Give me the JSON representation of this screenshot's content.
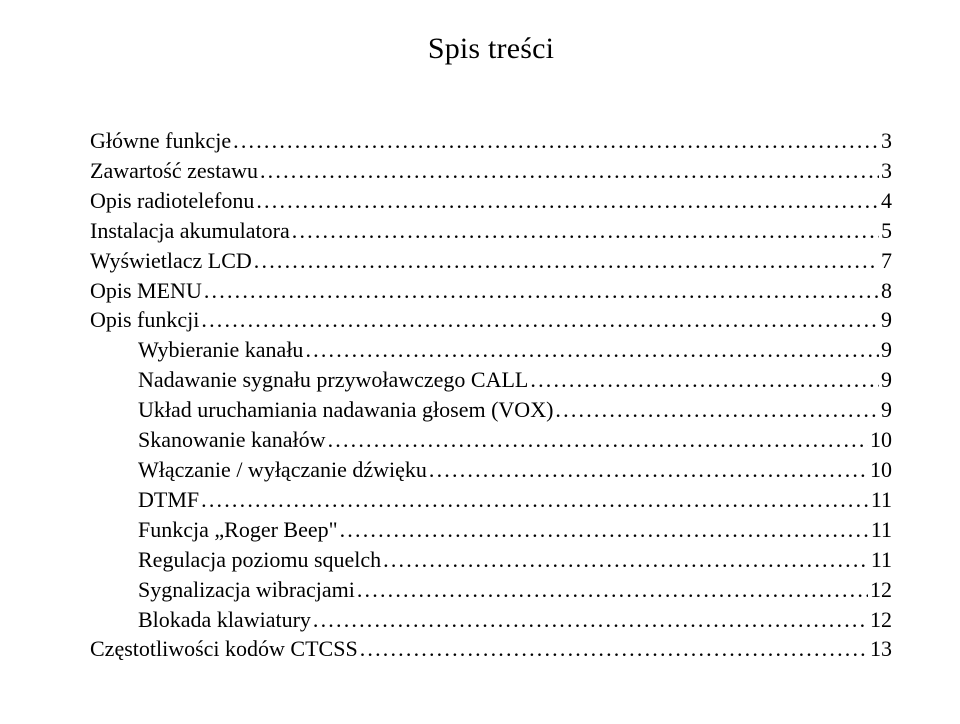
{
  "title": "Spis treści",
  "background_color": "#ffffff",
  "text_color": "#000000",
  "font_family": "Times New Roman",
  "title_fontsize": 30,
  "body_fontsize": 22,
  "line_height": 1.36,
  "toc": [
    {
      "label": "Główne funkcje",
      "page": "3",
      "indent": 0
    },
    {
      "label": "Zawartość zestawu",
      "page": "3",
      "indent": 0
    },
    {
      "label": "Opis radiotelefonu",
      "page": "4",
      "indent": 0
    },
    {
      "label": "Instalacja akumulatora",
      "page": "5",
      "indent": 0
    },
    {
      "label": "Wyświetlacz LCD",
      "page": "7",
      "indent": 0
    },
    {
      "label": "Opis MENU",
      "page": "8",
      "indent": 0
    },
    {
      "label": "Opis funkcji",
      "page": "9",
      "indent": 0
    },
    {
      "label": "Wybieranie kanału",
      "page": "9",
      "indent": 1
    },
    {
      "label": "Nadawanie sygnału przywoławczego CALL",
      "page": "9",
      "indent": 1
    },
    {
      "label": "Układ uruchamiania nadawania głosem (VOX)",
      "page": "9",
      "indent": 1
    },
    {
      "label": "Skanowanie kanałów",
      "page": "10",
      "indent": 1
    },
    {
      "label": "Włączanie / wyłączanie dźwięku",
      "page": "10",
      "indent": 1
    },
    {
      "label": "DTMF",
      "page": "11",
      "indent": 1
    },
    {
      "label": "Funkcja „Roger Beep\"",
      "page": "11",
      "indent": 1
    },
    {
      "label": "Regulacja poziomu squelch",
      "page": "11",
      "indent": 1
    },
    {
      "label": "Sygnalizacja wibracjami",
      "page": "12",
      "indent": 1
    },
    {
      "label": "Blokada klawiatury",
      "page": "12",
      "indent": 1
    },
    {
      "label": "Częstotliwości kodów CTCSS",
      "page": "13",
      "indent": 0
    }
  ]
}
